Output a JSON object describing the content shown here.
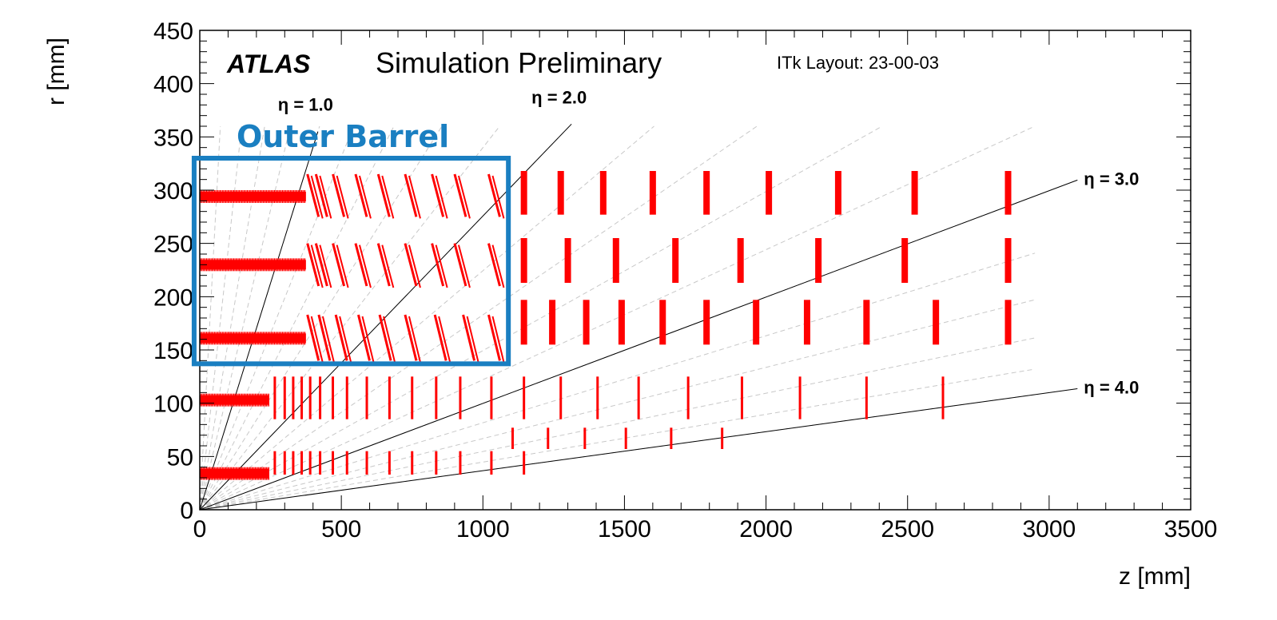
{
  "chart_data": {
    "type": "scatter",
    "title": "",
    "xlabel": "z [mm]",
    "ylabel": "r [mm]",
    "xlim": [
      0,
      3500
    ],
    "ylim": [
      0,
      450
    ],
    "x_ticks": [
      "0",
      "500",
      "1000",
      "1500",
      "2000",
      "2500",
      "3000",
      "3500"
    ],
    "y_ticks": [
      "0",
      "50",
      "100",
      "150",
      "200",
      "250",
      "300",
      "350",
      "400",
      "450"
    ],
    "grid": false,
    "annotations": {
      "experiment": "ATLAS",
      "status": "Simulation Preliminary",
      "layout": "ITk Layout: 23-00-03",
      "region": "Outer Barrel"
    },
    "region_box": {
      "z": [
        -20,
        1090
      ],
      "r": [
        137,
        330
      ],
      "color": "#1a7fc1"
    },
    "eta_lines": [
      {
        "label": "η = 1.0",
        "eta": 1.0
      },
      {
        "label": "η = 2.0",
        "eta": 2.0
      },
      {
        "label": "η = 3.0",
        "eta": 3.0
      },
      {
        "label": "η = 4.0",
        "eta": 4.0
      }
    ],
    "module_color": "#ff0000",
    "barrel_layers": [
      {
        "r": 294,
        "z": [
          0,
          375
        ]
      },
      {
        "r": 230,
        "z": [
          0,
          375
        ]
      },
      {
        "r": 161,
        "z": [
          0,
          375
        ]
      },
      {
        "r": 103,
        "z": [
          0,
          245
        ]
      },
      {
        "r": 34,
        "z": [
          0,
          245
        ]
      }
    ],
    "inclined_rings": [
      {
        "r": [
          275,
          315
        ],
        "z": [
          400,
          430,
          490,
          570,
          650,
          745,
          840,
          920,
          1040
        ]
      },
      {
        "r": [
          210,
          250
        ],
        "z": [
          400,
          430,
          490,
          570,
          650,
          745,
          840,
          920,
          1040
        ]
      },
      {
        "r": [
          140,
          183
        ],
        "z": [
          400,
          440,
          500,
          580,
          655,
          745,
          850,
          950,
          1040
        ]
      }
    ],
    "inner_rings": [
      {
        "r": [
          85,
          125
        ],
        "z": [
          265,
          300,
          330,
          360,
          390,
          425,
          470,
          520,
          590,
          670,
          750,
          835,
          920,
          1030,
          1145,
          1275,
          1405,
          1550,
          1725,
          1915,
          2120,
          2355,
          2625
        ]
      },
      {
        "r": [
          57,
          77
        ],
        "z": [
          1105,
          1230,
          1360,
          1505,
          1665,
          1845
        ]
      },
      {
        "r": [
          33,
          55
        ],
        "z": [
          265,
          300,
          330,
          360,
          390,
          425,
          470,
          520,
          590,
          670,
          750,
          835,
          920,
          1030,
          1145
        ]
      }
    ],
    "endcap_rings": [
      {
        "r": [
          277,
          318
        ],
        "z": [
          1145,
          1275,
          1425,
          1600,
          1790,
          2010,
          2255,
          2525,
          2855
        ]
      },
      {
        "r": [
          213,
          255
        ],
        "z": [
          1145,
          1300,
          1470,
          1680,
          1910,
          2185,
          2490,
          2855
        ]
      },
      {
        "r": [
          155,
          197
        ],
        "z": [
          1145,
          1245,
          1365,
          1490,
          1635,
          1790,
          1965,
          2145,
          2355,
          2600,
          2855
        ]
      }
    ]
  }
}
